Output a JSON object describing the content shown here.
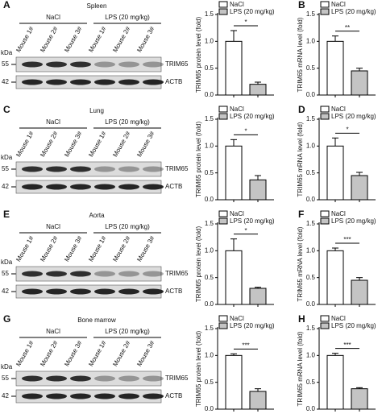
{
  "chart_data": [
    {
      "type": "bar",
      "ylabel": "TRIM65 protein level (fold)",
      "ylim": [
        0,
        1.5
      ],
      "yticks": [
        {
          "value": 0,
          "label": "0.0"
        },
        0.5,
        {
          "value": 1,
          "label": "1.0"
        },
        1.5
      ],
      "annotation": "*",
      "series": [
        {
          "name": "NaCl",
          "color": "#ffffff",
          "values": [
            1.0
          ],
          "errors": [
            0.2
          ]
        },
        {
          "name": "LPS (20 mg/kg)",
          "color": "#c4c4c4",
          "values": [
            0.2
          ],
          "errors": [
            0.04
          ]
        }
      ]
    },
    {
      "type": "bar",
      "letter": "B",
      "ylabel": "TRIM65 mRNA level (fold)",
      "ylim": [
        0,
        1.5
      ],
      "yticks": [
        {
          "value": 0,
          "label": "0.0"
        },
        0.5,
        {
          "value": 1,
          "label": "1.0"
        },
        1.5
      ],
      "annotation": "**",
      "series": [
        {
          "name": "NaCl",
          "color": "#ffffff",
          "values": [
            1.0
          ],
          "errors": [
            0.1
          ]
        },
        {
          "name": "LPS (20 mg/kg)",
          "color": "#c4c4c4",
          "values": [
            0.45
          ],
          "errors": [
            0.05
          ]
        }
      ]
    },
    {
      "type": "bar",
      "ylabel": "TRIM65 protein level (fold)",
      "ylim": [
        0,
        1.5
      ],
      "yticks": [
        {
          "value": 0,
          "label": "0.0"
        },
        0.5,
        {
          "value": 1,
          "label": "1.0"
        },
        1.5
      ],
      "annotation": "*",
      "series": [
        {
          "name": "NaCl",
          "color": "#ffffff",
          "values": [
            1.0
          ],
          "errors": [
            0.12
          ]
        },
        {
          "name": "LPS (20 mg/kg)",
          "color": "#c4c4c4",
          "values": [
            0.37
          ],
          "errors": [
            0.08
          ]
        }
      ]
    },
    {
      "type": "bar",
      "letter": "D",
      "ylabel": "TRIM65 mRNA level (fold)",
      "ylim": [
        0,
        1.5
      ],
      "yticks": [
        {
          "value": 0,
          "label": "0.0"
        },
        0.5,
        {
          "value": 1,
          "label": "1.0"
        },
        1.5
      ],
      "annotation": "*",
      "series": [
        {
          "name": "NaCl",
          "color": "#ffffff",
          "values": [
            1.0
          ],
          "errors": [
            0.15
          ]
        },
        {
          "name": "LPS (20 mg/kg)",
          "color": "#c4c4c4",
          "values": [
            0.45
          ],
          "errors": [
            0.06
          ]
        }
      ]
    },
    {
      "type": "bar",
      "ylabel": "TRIM65 protein level (fold)",
      "ylim": [
        0,
        1.5
      ],
      "yticks": [
        {
          "value": 0,
          "label": "0.0"
        },
        0.5,
        {
          "value": 1,
          "label": "1.0"
        },
        1.5
      ],
      "annotation": "*",
      "series": [
        {
          "name": "NaCl",
          "color": "#ffffff",
          "values": [
            1.0
          ],
          "errors": [
            0.22
          ]
        },
        {
          "name": "LPS (20 mg/kg)",
          "color": "#c4c4c4",
          "values": [
            0.3
          ],
          "errors": [
            0.02
          ]
        }
      ]
    },
    {
      "type": "bar",
      "letter": "F",
      "ylabel": "TRIM65 mRNA level (fold)",
      "ylim": [
        0,
        1.5
      ],
      "yticks": [
        {
          "value": 0,
          "label": "0.0"
        },
        0.5,
        {
          "value": 1,
          "label": "1.0"
        },
        1.5
      ],
      "annotation": "***",
      "series": [
        {
          "name": "NaCl",
          "color": "#ffffff",
          "values": [
            1.0
          ],
          "errors": [
            0.05
          ]
        },
        {
          "name": "LPS (20 mg/kg)",
          "color": "#c4c4c4",
          "values": [
            0.45
          ],
          "errors": [
            0.05
          ]
        }
      ]
    },
    {
      "type": "bar",
      "ylabel": "TRIM65 protein level (fold)",
      "ylim": [
        0,
        1.5
      ],
      "yticks": [
        {
          "value": 0,
          "label": "0.0"
        },
        0.5,
        {
          "value": 1,
          "label": "1.0"
        },
        1.5
      ],
      "annotation": "***",
      "series": [
        {
          "name": "NaCl",
          "color": "#ffffff",
          "values": [
            1.0
          ],
          "errors": [
            0.03
          ]
        },
        {
          "name": "LPS (20 mg/kg)",
          "color": "#c4c4c4",
          "values": [
            0.33
          ],
          "errors": [
            0.05
          ]
        }
      ]
    },
    {
      "type": "bar",
      "letter": "H",
      "ylabel": "TRIM65 mRNA level (fold)",
      "ylim": [
        0,
        1.5
      ],
      "yticks": [
        {
          "value": 0,
          "label": "0.0"
        },
        0.5,
        {
          "value": 1,
          "label": "1.0"
        },
        1.5
      ],
      "annotation": "***",
      "series": [
        {
          "name": "NaCl",
          "color": "#ffffff",
          "values": [
            1.0
          ],
          "errors": [
            0.04
          ]
        },
        {
          "name": "LPS (20 mg/kg)",
          "color": "#c4c4c4",
          "values": [
            0.38
          ],
          "errors": [
            0.02
          ]
        }
      ]
    }
  ],
  "blots": [
    {
      "letter": "A",
      "tissue": "Spleen",
      "groups": [
        "NaCl",
        "LPS (20 mg/kg)"
      ],
      "lanes": [
        "Mouse 1#",
        "Mouse 2#",
        "Mouse 3#",
        "Mouse 1#",
        "Mouse 2#",
        "Mouse 3#"
      ],
      "kda": "kDa",
      "markers": [
        "55",
        "42"
      ],
      "proteins": [
        "TRIM65",
        "ACTB"
      ]
    },
    {
      "letter": "C",
      "tissue": "Lung",
      "groups": [
        "NaCl",
        "LPS (20 mg/kg)"
      ],
      "lanes": [
        "Mouse 1#",
        "Mouse 2#",
        "Mouse 3#",
        "Mouse 1#",
        "Mouse 2#",
        "Mouse 3#"
      ],
      "kda": "kDa",
      "markers": [
        "55",
        "42"
      ],
      "proteins": [
        "TRIM65",
        "ACTB"
      ]
    },
    {
      "letter": "E",
      "tissue": "Aorta",
      "groups": [
        "NaCl",
        "LPS (20 mg/kg)"
      ],
      "lanes": [
        "Mouse 1#",
        "Mouse 2#",
        "Mouse 3#",
        "Mouse 1#",
        "Mouse 2#",
        "Mouse 3#"
      ],
      "kda": "kDa",
      "markers": [
        "55",
        "42"
      ],
      "proteins": [
        "TRIM65",
        "ACTB"
      ]
    },
    {
      "letter": "G",
      "tissue": "Bone marrow",
      "groups": [
        "NaCl",
        "LPS (20 mg/kg)"
      ],
      "lanes": [
        "Mouse 1#",
        "Mouse 2#",
        "Mouse 3#",
        "Mouse 1#",
        "Mouse 2#",
        "Mouse 3#"
      ],
      "kda": "kDa",
      "markers": [
        "55",
        "42"
      ],
      "proteins": [
        "TRIM65",
        "ACTB"
      ]
    }
  ]
}
